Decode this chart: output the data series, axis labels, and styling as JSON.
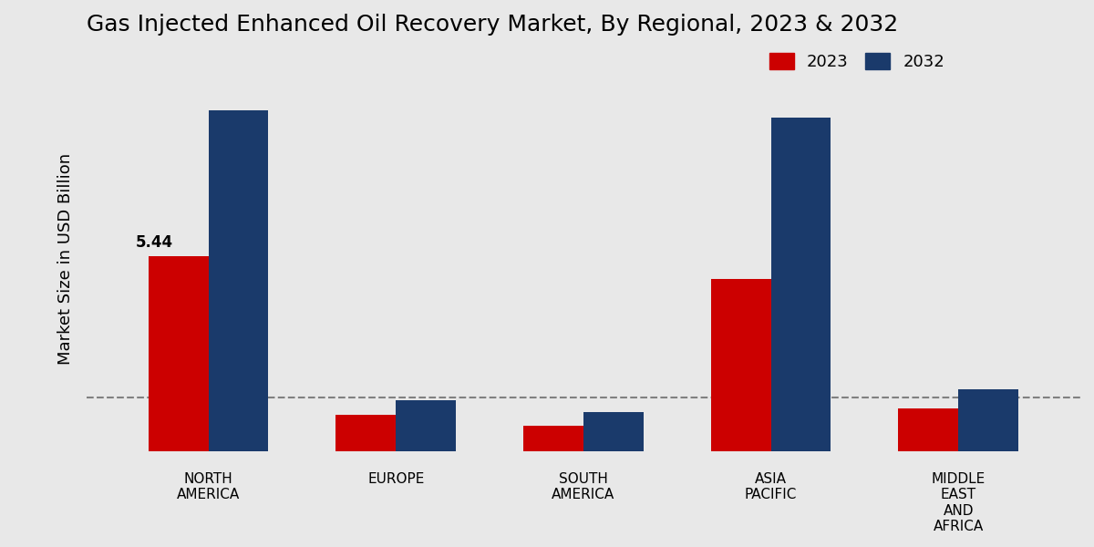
{
  "title": "Gas Injected Enhanced Oil Recovery Market, By Regional, 2023 & 2032",
  "ylabel": "Market Size in USD Billion",
  "categories": [
    "NORTH\nAMERICA",
    "EUROPE",
    "SOUTH\nAMERICA",
    "ASIA\nPACIFIC",
    "MIDDLE\nEAST\nAND\nAFRICA"
  ],
  "values_2023": [
    5.44,
    1.02,
    0.72,
    4.8,
    1.2
  ],
  "values_2032": [
    9.5,
    1.42,
    1.1,
    9.3,
    1.72
  ],
  "color_2023": "#cc0000",
  "color_2032": "#1a3a6b",
  "bar_width": 0.32,
  "annotation_2023_label": "5.44",
  "annotation_2023_bar_index": 0,
  "dashed_line_y": 1.5,
  "legend_labels": [
    "2023",
    "2032"
  ],
  "background_color": "#e8e8e8",
  "ylim": [
    -0.3,
    11.0
  ],
  "title_fontsize": 18,
  "axis_label_fontsize": 13,
  "tick_fontsize": 11
}
